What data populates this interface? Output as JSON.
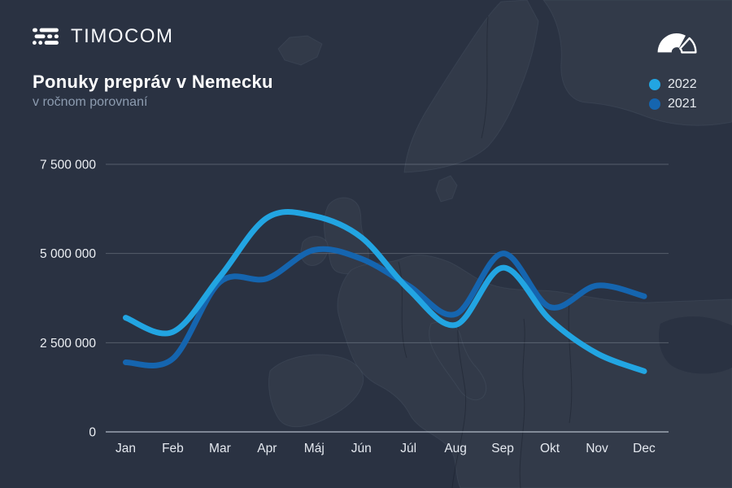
{
  "header": {
    "logo_text": "TIMOCOM",
    "title": "Ponuky prepráv v Nemecku",
    "subtitle": "v ročnom porovnaní"
  },
  "legend": {
    "items": [
      {
        "label": "2022",
        "color": "#22A5E2"
      },
      {
        "label": "2021",
        "color": "#1565AF"
      }
    ]
  },
  "colors": {
    "background": "#2A3242",
    "map_land": "#323A49",
    "grid_line": "rgba(215,224,236,0.25)",
    "axis_line": "rgba(215,224,236,0.65)",
    "tick_text": "#EDF0F4",
    "month_text": "#E4E8EF",
    "series_2022": "#22A5E2",
    "series_2021": "#1565AF"
  },
  "chart_data": {
    "type": "line",
    "title": "Ponuky prepráv v Nemecku",
    "subtitle": "v ročnom porovnaní",
    "categories": [
      "Jan",
      "Feb",
      "Mar",
      "Apr",
      "Máj",
      "Jún",
      "Júl",
      "Aug",
      "Sep",
      "Okt",
      "Nov",
      "Dec"
    ],
    "series": [
      {
        "name": "2022",
        "color": "#22A5E2",
        "values": [
          3200000,
          2800000,
          4350000,
          6000000,
          6050000,
          5450000,
          4000000,
          3000000,
          4600000,
          3150000,
          2200000,
          1700000
        ]
      },
      {
        "name": "2021",
        "color": "#1565AF",
        "values": [
          1950000,
          2050000,
          4200000,
          4300000,
          5100000,
          4850000,
          4100000,
          3300000,
          5000000,
          3500000,
          4100000,
          3800000
        ]
      }
    ],
    "ylim": [
      0,
      7500000
    ],
    "yticks": [
      {
        "value": 0,
        "label": "0"
      },
      {
        "value": 2500000,
        "label": "2 500 000"
      },
      {
        "value": 5000000,
        "label": "5 000 000"
      },
      {
        "value": 7500000,
        "label": "7 500 000"
      }
    ],
    "grid": "horizontal",
    "legend_position": "top-right"
  }
}
